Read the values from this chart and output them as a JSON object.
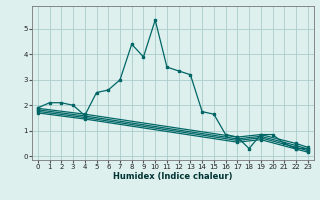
{
  "xlabel": "Humidex (Indice chaleur)",
  "bg_color": "#ddf0ee",
  "grid_color": "#aacccc",
  "line_color": "#006666",
  "xlim": [
    -0.5,
    23.5
  ],
  "ylim": [
    -0.15,
    5.9
  ],
  "xticks": [
    0,
    1,
    2,
    3,
    4,
    5,
    6,
    7,
    8,
    9,
    10,
    11,
    12,
    13,
    14,
    15,
    16,
    17,
    18,
    19,
    20,
    21,
    22,
    23
  ],
  "yticks": [
    0,
    1,
    2,
    3,
    4,
    5
  ],
  "main_series": [
    [
      0,
      1.9
    ],
    [
      1,
      2.1
    ],
    [
      2,
      2.1
    ],
    [
      3,
      2.0
    ],
    [
      4,
      1.6
    ],
    [
      5,
      2.5
    ],
    [
      6,
      2.6
    ],
    [
      7,
      3.0
    ],
    [
      8,
      4.4
    ],
    [
      9,
      3.9
    ],
    [
      10,
      5.35
    ],
    [
      11,
      3.5
    ],
    [
      12,
      3.35
    ],
    [
      13,
      3.2
    ],
    [
      14,
      1.75
    ],
    [
      15,
      1.65
    ],
    [
      16,
      0.85
    ],
    [
      17,
      0.75
    ],
    [
      18,
      0.3
    ],
    [
      19,
      0.85
    ],
    [
      20,
      0.85
    ],
    [
      21,
      0.5
    ],
    [
      22,
      0.3
    ],
    [
      23,
      0.3
    ]
  ],
  "flat_lines": [
    [
      [
        0,
        1.88
      ],
      [
        4,
        1.65
      ],
      [
        17,
        0.75
      ],
      [
        19,
        0.85
      ],
      [
        22,
        0.5
      ],
      [
        23,
        0.35
      ]
    ],
    [
      [
        0,
        1.82
      ],
      [
        4,
        1.58
      ],
      [
        17,
        0.68
      ],
      [
        19,
        0.78
      ],
      [
        22,
        0.42
      ],
      [
        23,
        0.28
      ]
    ],
    [
      [
        0,
        1.76
      ],
      [
        4,
        1.52
      ],
      [
        17,
        0.62
      ],
      [
        19,
        0.72
      ],
      [
        22,
        0.35
      ],
      [
        23,
        0.22
      ]
    ],
    [
      [
        0,
        1.7
      ],
      [
        4,
        1.46
      ],
      [
        17,
        0.55
      ],
      [
        19,
        0.65
      ],
      [
        22,
        0.28
      ],
      [
        23,
        0.16
      ]
    ]
  ]
}
